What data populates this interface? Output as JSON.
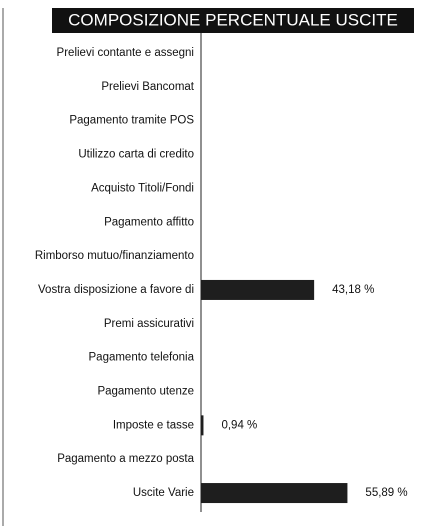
{
  "chart_data": {
    "type": "bar",
    "orientation": "horizontal",
    "title": "COMPOSIZIONE PERCENTUALE USCITE",
    "categories": [
      "Prelievi contante e assegni",
      "Prelievi Bancomat",
      "Pagamento tramite POS",
      "Utilizzo carta di credito",
      "Acquisto Titoli/Fondi",
      "Pagamento affitto",
      "Rimborso mutuo/finanziamento",
      "Vostra disposizione a favore di",
      "Premi assicurativi",
      "Pagamento telefonia",
      "Pagamento utenze",
      "Imposte e tasse",
      "Pagamento a mezzo posta",
      "Uscite Varie"
    ],
    "values": [
      0,
      0,
      0,
      0,
      0,
      0,
      0,
      43.18,
      0,
      0,
      0,
      0.94,
      0,
      55.89
    ],
    "value_labels": [
      null,
      null,
      null,
      null,
      null,
      null,
      null,
      "43,18 %",
      null,
      null,
      null,
      "0,94 %",
      null,
      "55,89 %"
    ],
    "color": "#1e1e1e"
  }
}
